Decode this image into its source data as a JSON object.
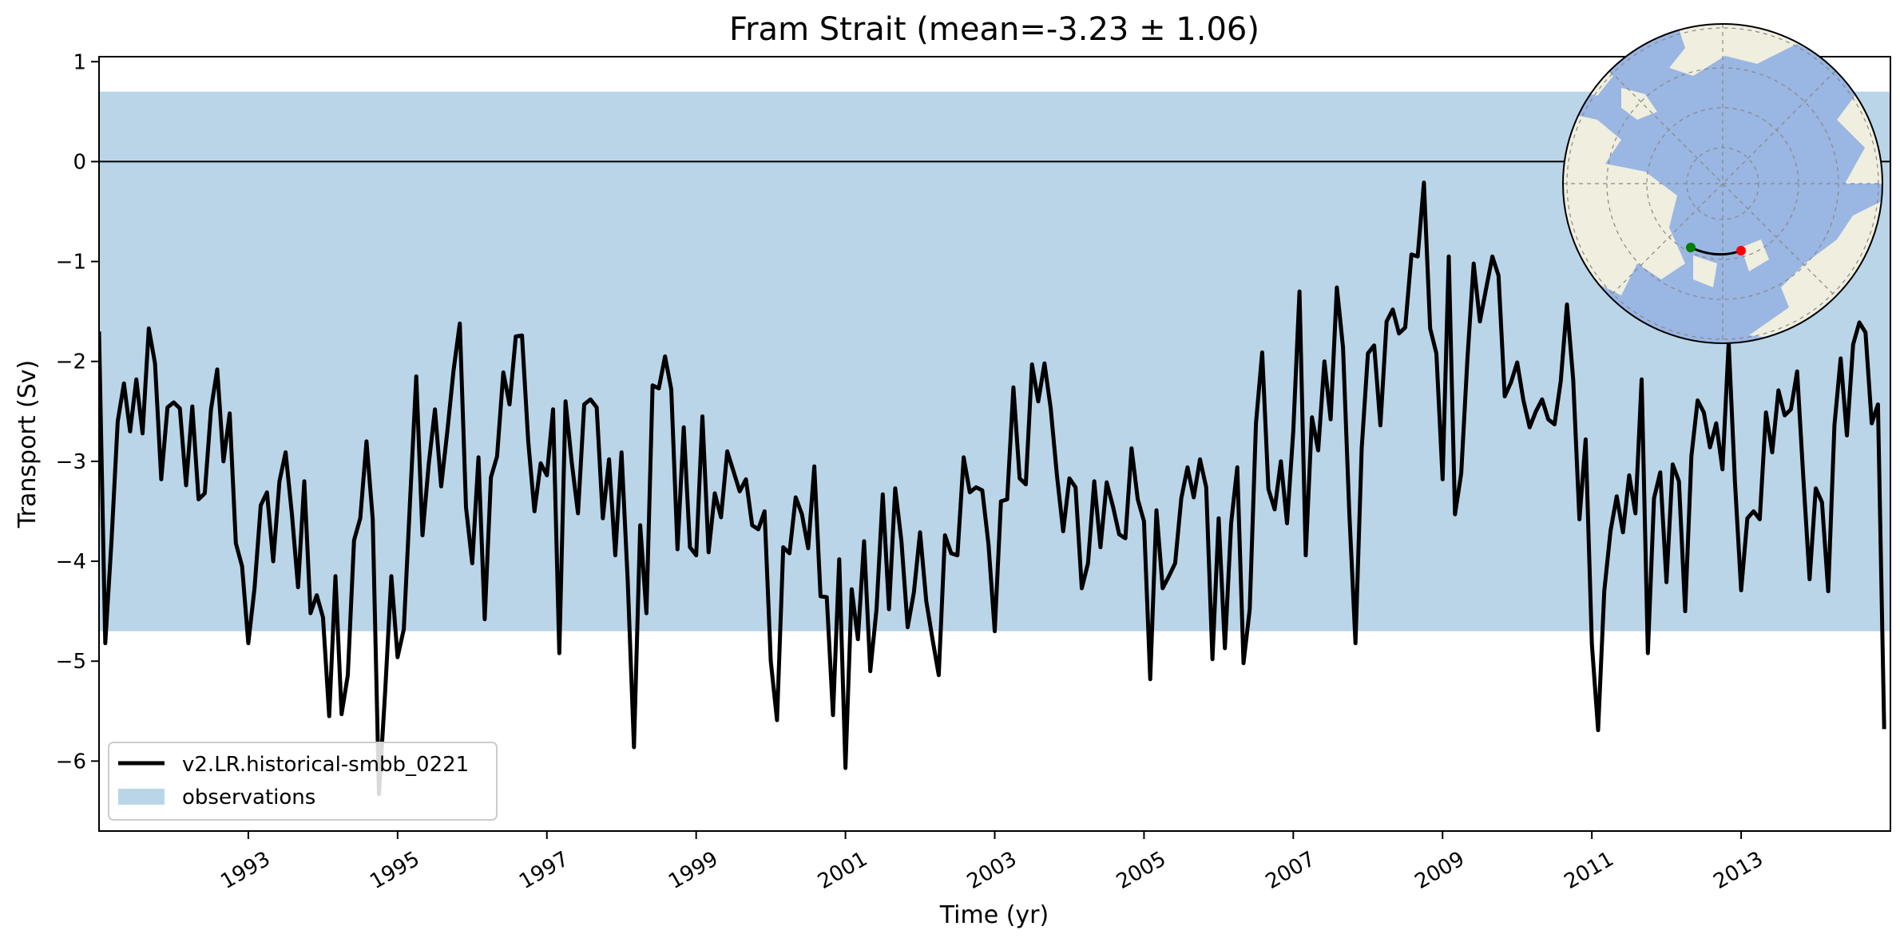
{
  "chart_data": {
    "type": "line",
    "title": "Fram Strait (mean=-3.23 ± 1.06)",
    "xlabel": "Time (yr)",
    "ylabel": "Transport (Sv)",
    "xlim": [
      1991.0,
      2015.0
    ],
    "ylim": [
      -6.7,
      1.05
    ],
    "xticks": [
      1993,
      1995,
      1997,
      1999,
      2001,
      2003,
      2005,
      2007,
      2009,
      2011,
      2013
    ],
    "xtick_labels": [
      "1993",
      "1995",
      "1997",
      "1999",
      "2001",
      "2003",
      "2005",
      "2007",
      "2009",
      "2011",
      "2013"
    ],
    "yticks": [
      1,
      0,
      -1,
      -2,
      -3,
      -4,
      -5,
      -6
    ],
    "ytick_labels": [
      "1",
      "0",
      "−1",
      "−2",
      "−3",
      "−4",
      "−5",
      "−6"
    ],
    "zero_line": 0,
    "observations_band": [
      -4.7,
      0.7
    ],
    "legend_position": "lower-left",
    "inset": "polar map of the Arctic with Fram Strait section marked",
    "colors": {
      "line": "#000000",
      "band": "#bad5e8",
      "ocean": "#9ab6e2",
      "land": "#efeedf",
      "start_marker": "#008000",
      "end_marker": "#ff0000"
    },
    "series": [
      {
        "name": "v2.LR.historical-smbb_0221",
        "x_start": 1991.0,
        "x_step_months": 1,
        "values": [
          -1.7,
          -4.82,
          -3.8,
          -2.6,
          -2.22,
          -2.7,
          -2.18,
          -2.72,
          -1.67,
          -2.02,
          -3.18,
          -2.46,
          -2.41,
          -2.47,
          -3.24,
          -2.45,
          -3.38,
          -3.32,
          -2.48,
          -2.08,
          -3.0,
          -2.52,
          -3.82,
          -4.05,
          -4.82,
          -4.27,
          -3.44,
          -3.31,
          -4.0,
          -3.2,
          -2.91,
          -3.52,
          -4.26,
          -3.2,
          -4.52,
          -4.34,
          -4.56,
          -5.55,
          -4.15,
          -5.53,
          -5.14,
          -3.79,
          -3.57,
          -2.8,
          -3.58,
          -6.33,
          -5.3,
          -4.15,
          -4.96,
          -4.68,
          -3.4,
          -2.15,
          -3.74,
          -3.03,
          -2.48,
          -3.25,
          -2.7,
          -2.09,
          -1.62,
          -3.46,
          -4.02,
          -2.96,
          -4.58,
          -3.16,
          -2.95,
          -2.11,
          -2.43,
          -1.75,
          -1.74,
          -2.8,
          -3.5,
          -3.02,
          -3.14,
          -2.48,
          -4.92,
          -2.4,
          -3.01,
          -3.52,
          -2.43,
          -2.38,
          -2.46,
          -3.57,
          -2.98,
          -3.94,
          -2.91,
          -4.2,
          -5.86,
          -3.64,
          -4.52,
          -2.24,
          -2.27,
          -1.95,
          -2.28,
          -3.88,
          -2.66,
          -3.86,
          -3.94,
          -2.55,
          -3.91,
          -3.32,
          -3.56,
          -2.9,
          -3.1,
          -3.3,
          -3.18,
          -3.64,
          -3.68,
          -3.5,
          -5.0,
          -5.59,
          -3.86,
          -3.92,
          -3.36,
          -3.53,
          -3.87,
          -3.05,
          -4.35,
          -4.36,
          -5.54,
          -3.98,
          -6.07,
          -4.28,
          -4.78,
          -3.8,
          -5.1,
          -4.48,
          -3.33,
          -4.48,
          -3.27,
          -3.8,
          -4.66,
          -4.31,
          -3.71,
          -4.4,
          -4.78,
          -5.14,
          -3.74,
          -3.92,
          -3.94,
          -2.96,
          -3.31,
          -3.26,
          -3.29,
          -3.83,
          -4.7,
          -3.4,
          -3.38,
          -2.26,
          -3.17,
          -3.23,
          -2.03,
          -2.4,
          -2.02,
          -2.47,
          -3.14,
          -3.7,
          -3.17,
          -3.26,
          -4.27,
          -4.02,
          -3.2,
          -3.86,
          -3.21,
          -3.45,
          -3.73,
          -3.77,
          -2.87,
          -3.38,
          -3.6,
          -5.18,
          -3.49,
          -4.27,
          -4.15,
          -4.02,
          -3.37,
          -3.06,
          -3.36,
          -2.98,
          -3.26,
          -4.98,
          -3.57,
          -4.87,
          -3.62,
          -3.06,
          -5.02,
          -4.48,
          -2.62,
          -1.91,
          -3.28,
          -3.48,
          -3.0,
          -3.62,
          -2.7,
          -1.3,
          -3.94,
          -2.56,
          -2.89,
          -2.0,
          -2.58,
          -1.26,
          -1.86,
          -3.5,
          -4.82,
          -2.87,
          -1.92,
          -1.84,
          -2.64,
          -1.6,
          -1.48,
          -1.72,
          -1.66,
          -0.93,
          -0.95,
          -0.21,
          -1.67,
          -1.92,
          -3.18,
          -0.95,
          -3.53,
          -3.12,
          -1.97,
          -1.02,
          -1.6,
          -1.27,
          -0.95,
          -1.14,
          -2.35,
          -2.21,
          -2.01,
          -2.39,
          -2.66,
          -2.5,
          -2.38,
          -2.58,
          -2.63,
          -2.2,
          -1.43,
          -2.18,
          -3.58,
          -2.78,
          -4.83,
          -5.69,
          -4.3,
          -3.7,
          -3.35,
          -3.71,
          -3.14,
          -3.52,
          -2.18,
          -4.92,
          -3.37,
          -3.11,
          -4.21,
          -3.03,
          -3.2,
          -4.5,
          -2.95,
          -2.39,
          -2.51,
          -2.86,
          -2.62,
          -3.08,
          -1.81,
          -3.2,
          -4.29,
          -3.57,
          -3.5,
          -3.58,
          -2.51,
          -2.91,
          -2.29,
          -2.54,
          -2.48,
          -2.1,
          -3.17,
          -4.18,
          -3.27,
          -3.41,
          -4.3,
          -2.64,
          -1.97,
          -2.74,
          -1.83,
          -1.61,
          -1.71,
          -2.62,
          -2.43,
          -5.68
        ]
      },
      {
        "name": "observations"
      }
    ]
  }
}
